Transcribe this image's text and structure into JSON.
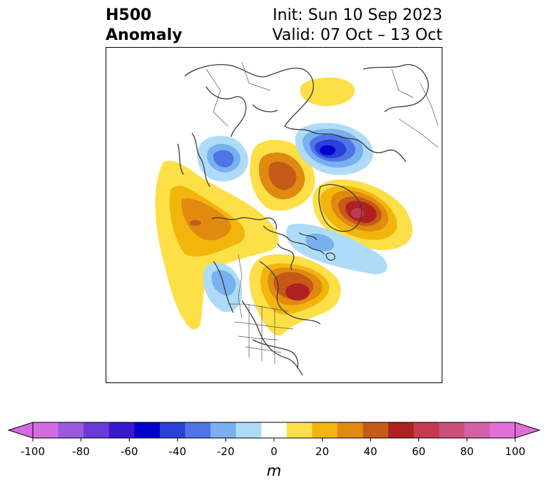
{
  "title": {
    "field": "H500",
    "type": "Anomaly",
    "init": "Init: Sun 10 Sep 2023",
    "valid": "Valid: 07 Oct – 13 Oct"
  },
  "colorbar": {
    "unit": "m",
    "ticks": [
      "-100",
      "-80",
      "-60",
      "-40",
      "-20",
      "0",
      "20",
      "40",
      "60",
      "80",
      "100"
    ],
    "levels": [
      -100,
      -90,
      -80,
      -70,
      -60,
      -50,
      -40,
      -30,
      -20,
      -10,
      10,
      20,
      30,
      40,
      50,
      60,
      70,
      80,
      90,
      100
    ],
    "colors": [
      "#d36be0",
      "#9a5ae0",
      "#6a3ad8",
      "#3a18d0",
      "#0000cc",
      "#2a40d8",
      "#4e74e6",
      "#78b0f0",
      "#aedcf8",
      "#ffffff",
      "#fde047",
      "#f2b50c",
      "#e08a10",
      "#c55a18",
      "#b02020",
      "#c43a50",
      "#cc4f7a",
      "#d660a8",
      "#e070d8"
    ],
    "extend_low": "#d36be0",
    "extend_high": "#e070d8"
  },
  "anomalies": [
    {
      "name": "positive-anomaly-north-pacific",
      "sign": "positive",
      "peak": 40
    },
    {
      "name": "positive-anomaly-eastern-canada",
      "sign": "positive",
      "peak": 60
    },
    {
      "name": "positive-anomaly-greenland-arctic",
      "sign": "positive",
      "peak": 40
    },
    {
      "name": "positive-anomaly-barents-eurasia",
      "sign": "positive",
      "peak": 70
    },
    {
      "name": "positive-anomaly-scandinavia",
      "sign": "positive",
      "peak": 20
    },
    {
      "name": "negative-anomaly-siberia",
      "sign": "negative",
      "peak": -60
    },
    {
      "name": "negative-anomaly-east-asia",
      "sign": "negative",
      "peak": -40
    },
    {
      "name": "negative-anomaly-alaska-west-canada",
      "sign": "negative",
      "peak": -30
    },
    {
      "name": "negative-anomaly-north-atlantic",
      "sign": "negative",
      "peak": -30
    }
  ]
}
